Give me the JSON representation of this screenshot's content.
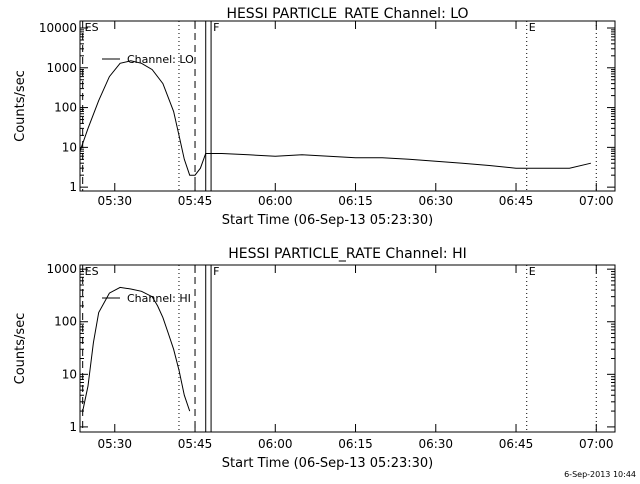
{
  "footer": {
    "timestamp": "6-Sep-2013 10:44"
  },
  "chart_data": [
    {
      "type": "line",
      "title": "HESSI PARTICLE_RATE Channel: LO",
      "xlabel": "Start Time (06-Sep-13 05:23:30)",
      "ylabel": "Counts/sec",
      "yscale": "log",
      "xunit": "minutes since 05:23:30",
      "xlim": [
        0,
        100
      ],
      "ylim": [
        0.8,
        15000
      ],
      "x_ticks": [
        "05:30",
        "05:45",
        "06:00",
        "06:15",
        "06:30",
        "06:45",
        "07:00"
      ],
      "y_ticks": [
        "1",
        "10",
        "100",
        "1000",
        "10000"
      ],
      "legend": "Channel: LO",
      "markers": [
        {
          "label": "ES",
          "time": "05:24",
          "style": "dash"
        },
        {
          "label": "",
          "time": "05:42",
          "style": "dot"
        },
        {
          "label": "",
          "time": "05:45",
          "style": "dash"
        },
        {
          "label": "",
          "time": "05:47",
          "style": "solid"
        },
        {
          "label": "F",
          "time": "05:48",
          "style": "solid"
        },
        {
          "label": "E",
          "time": "06:47",
          "style": "dot"
        },
        {
          "label": "",
          "time": "07:00",
          "style": "dot"
        }
      ],
      "series": [
        {
          "name": "Channel: LO",
          "x": [
            "05:23:30",
            "05:25",
            "05:27",
            "05:29",
            "05:31",
            "05:33",
            "05:35",
            "05:37",
            "05:39",
            "05:41",
            "05:42",
            "05:43",
            "05:44",
            "05:45",
            "05:46",
            "05:47",
            "05:50",
            "05:55",
            "06:00",
            "06:05",
            "06:10",
            "06:15",
            "06:20",
            "06:25",
            "06:30",
            "06:35",
            "06:40",
            "06:45",
            "06:50",
            "06:55",
            "06:59"
          ],
          "y": [
            8,
            30,
            150,
            600,
            1300,
            1500,
            1300,
            900,
            400,
            80,
            20,
            5,
            2,
            2,
            3,
            7,
            7,
            6.5,
            6,
            6.5,
            6,
            5.5,
            5.5,
            5,
            4.5,
            4,
            3.5,
            3,
            3,
            3,
            4
          ]
        }
      ]
    },
    {
      "type": "line",
      "title": "HESSI PARTICLE_RATE Channel: HI",
      "xlabel": "Start Time (06-Sep-13 05:23:30)",
      "ylabel": "Counts/sec",
      "yscale": "log",
      "xunit": "minutes since 05:23:30",
      "xlim": [
        0,
        100
      ],
      "ylim": [
        0.8,
        1200
      ],
      "x_ticks": [
        "05:30",
        "05:45",
        "06:00",
        "06:15",
        "06:30",
        "06:45",
        "07:00"
      ],
      "y_ticks": [
        "1",
        "10",
        "100",
        "1000"
      ],
      "legend": "Channel: HI",
      "markers": [
        {
          "label": "ES",
          "time": "05:24",
          "style": "dash"
        },
        {
          "label": "",
          "time": "05:42",
          "style": "dot"
        },
        {
          "label": "",
          "time": "05:45",
          "style": "dash"
        },
        {
          "label": "",
          "time": "05:47",
          "style": "solid"
        },
        {
          "label": "F",
          "time": "05:48",
          "style": "solid"
        },
        {
          "label": "E",
          "time": "06:47",
          "style": "dot"
        },
        {
          "label": "",
          "time": "07:00",
          "style": "dot"
        }
      ],
      "series": [
        {
          "name": "Channel: HI",
          "x": [
            "05:24",
            "05:25",
            "05:26",
            "05:27",
            "05:29",
            "05:31",
            "05:33",
            "05:35",
            "05:37",
            "05:38",
            "05:39",
            "05:40",
            "05:41",
            "05:42",
            "05:43",
            "05:44"
          ],
          "y": [
            2,
            6,
            40,
            150,
            350,
            450,
            420,
            380,
            300,
            200,
            120,
            60,
            30,
            12,
            4,
            2
          ]
        }
      ]
    }
  ]
}
